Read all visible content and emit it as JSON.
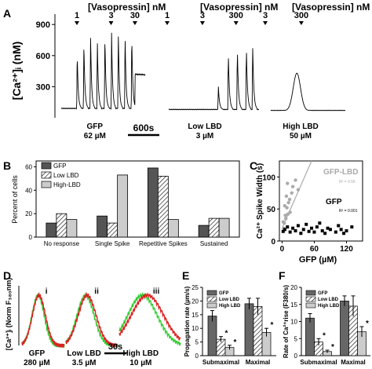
{
  "chart_data": [
    {
      "panel": "A",
      "type": "line",
      "ylabel": "[Ca²⁺]ᵢ (nM)",
      "yticks": [
        300,
        600,
        900
      ],
      "ylim": [
        0,
        1000
      ],
      "scalebar": "600s",
      "header_label": "[Vasopressin] nM",
      "traces": [
        {
          "label_line1": "GFP",
          "label_line2": "62 µM",
          "dose_marks": [
            {
              "label": "1",
              "t": 0.0
            },
            {
              "label": "3",
              "t": 0.5
            },
            {
              "label": "30",
              "t": 0.85
            }
          ],
          "peaks": [
            {
              "t": 0.19,
              "y": 640
            },
            {
              "t": 0.27,
              "y": 740
            },
            {
              "t": 0.35,
              "y": 770
            },
            {
              "t": 0.43,
              "y": 760
            },
            {
              "t": 0.52,
              "y": 800
            },
            {
              "t": 0.6,
              "y": 820
            },
            {
              "t": 0.68,
              "y": 830
            },
            {
              "t": 0.76,
              "y": 830
            },
            {
              "t": 0.84,
              "y": 820
            }
          ],
          "plateau_start": 0.88,
          "plateau_y": 400,
          "baseline": 90
        },
        {
          "label_line1": "Low LBD",
          "label_line2": "3 µM",
          "dose_marks": [
            {
              "label": "1",
              "t": 0.0
            },
            {
              "label": "3",
              "t": 0.42
            },
            {
              "label": "300",
              "t": 0.82
            }
          ],
          "peaks": [
            {
              "t": 0.55,
              "y": 300
            },
            {
              "t": 0.66,
              "y": 640
            },
            {
              "t": 0.76,
              "y": 680
            },
            {
              "t": 0.86,
              "y": 700
            },
            {
              "t": 0.93,
              "y": 710
            }
          ],
          "baseline": 80
        },
        {
          "label_line1": "High LBD",
          "label_line2": "50 µM",
          "dose_marks": [
            {
              "label": "3",
              "t": 0.0
            },
            {
              "label": "300",
              "t": 0.45
            }
          ],
          "broad_peak": {
            "t": 0.35,
            "y": 430,
            "width": 0.12
          },
          "baseline": 70
        }
      ]
    },
    {
      "panel": "B",
      "type": "bar",
      "ylabel": "Percent of cells",
      "yticks": [
        0,
        20,
        40,
        60
      ],
      "ylim": [
        0,
        65
      ],
      "categories": [
        "No response",
        "Single Spike",
        "Repetitive Spikes",
        "Sustained"
      ],
      "series": [
        {
          "name": "GFP",
          "color": "#555555",
          "pattern": "solid",
          "values": [
            12,
            18,
            59,
            10
          ]
        },
        {
          "name": "Low LBD",
          "color": "#ffffff",
          "pattern": "hatch",
          "values": [
            20,
            12,
            52,
            16
          ]
        },
        {
          "name": "High-LBD",
          "color": "#cccccc",
          "pattern": "solid",
          "values": [
            15,
            53,
            15,
            16
          ]
        }
      ]
    },
    {
      "panel": "C",
      "type": "scatter",
      "ylabel": "Ca²⁺ Spike Width (s)",
      "xlabel": "GFP (µM)",
      "xticks": [
        0,
        60,
        120
      ],
      "xlim": [
        -5,
        150
      ],
      "yticks": [
        0,
        50,
        100
      ],
      "ylim": [
        0,
        125
      ],
      "series": [
        {
          "name": "GFP-LBD",
          "color": "#aaaaaa",
          "r2": "R² = 0.56",
          "points": [
            [
              2,
              30
            ],
            [
              5,
              55
            ],
            [
              6,
              40
            ],
            [
              8,
              70
            ],
            [
              10,
              90
            ],
            [
              12,
              60
            ],
            [
              15,
              45
            ],
            [
              3,
              20
            ],
            [
              18,
              75
            ],
            [
              20,
              85
            ],
            [
              7,
              35
            ],
            [
              25,
              95
            ],
            [
              4,
              28
            ],
            [
              9,
              52
            ],
            [
              14,
              65
            ],
            [
              30,
              80
            ],
            [
              11,
              42
            ]
          ]
        },
        {
          "name": "GFP",
          "color": "#000000",
          "r2": "R² = 0.001",
          "points": [
            [
              2,
              15
            ],
            [
              5,
              18
            ],
            [
              10,
              22
            ],
            [
              15,
              14
            ],
            [
              20,
              20
            ],
            [
              25,
              16
            ],
            [
              30,
              24
            ],
            [
              35,
              12
            ],
            [
              40,
              18
            ],
            [
              45,
              26
            ],
            [
              50,
              15
            ],
            [
              55,
              20
            ],
            [
              60,
              14
            ],
            [
              65,
              22
            ],
            [
              70,
              28
            ],
            [
              75,
              16
            ],
            [
              80,
              12
            ],
            [
              85,
              20
            ],
            [
              90,
              18
            ],
            [
              100,
              14
            ],
            [
              105,
              24
            ],
            [
              110,
              18
            ],
            [
              115,
              12
            ],
            [
              120,
              16
            ],
            [
              130,
              22
            ]
          ]
        }
      ],
      "fit_line": {
        "series": "GFP-LBD",
        "x": [
          0,
          55
        ],
        "y": [
          20,
          125
        ]
      }
    },
    {
      "panel": "D",
      "type": "line",
      "ylabel": "[Ca²⁺]ᵢ (Norm F₃₈₀nm)",
      "scalebar": "30s",
      "subpanels": [
        {
          "roman": "i",
          "label_line1": "GFP",
          "label_line2": "280 µM",
          "green_width": 0.3,
          "red_width": 0.32,
          "red_lag": 0.02
        },
        {
          "roman": "ii",
          "label_line1": "Low LBD",
          "label_line2": "3.5 µM",
          "green_width": 0.34,
          "red_width": 0.36,
          "red_lag": 0.03
        },
        {
          "roman": "iii",
          "label_line1": "High LBD",
          "label_line2": "10 µM",
          "green_width": 0.5,
          "red_width": 0.55,
          "red_lag": 0.08
        }
      ],
      "colors": {
        "green": "#33cc33",
        "red": "#dd2222"
      }
    },
    {
      "panel": "E",
      "type": "bar",
      "ylabel": "Propagation rate (µm/s)",
      "yticks": [
        0,
        5,
        10,
        15,
        20,
        25
      ],
      "ylim": [
        0,
        25
      ],
      "categories": [
        "Submaximal",
        "Maximal"
      ],
      "series": [
        {
          "name": "GFP",
          "color": "#666666",
          "values": [
            14.5,
            19
          ],
          "err": [
            2.0,
            2.0
          ]
        },
        {
          "name": "Low LBD",
          "color": "#ffffff",
          "values": [
            6,
            18
          ],
          "err": [
            1.0,
            3.0
          ]
        },
        {
          "name": "High LBD",
          "color": "#cccccc",
          "values": [
            3,
            8.5
          ],
          "err": [
            0.8,
            1.5
          ]
        }
      ],
      "stars": [
        [
          1,
          0
        ],
        [
          2,
          0
        ],
        [
          2,
          1
        ]
      ]
    },
    {
      "panel": "F",
      "type": "bar",
      "ylabel": "Rate of Ca²⁺rise (F380/s)",
      "yticks": [
        0,
        5,
        10,
        15,
        20
      ],
      "ylim": [
        0,
        20
      ],
      "categories": [
        "Submaximal",
        "Maximal"
      ],
      "series": [
        {
          "name": "GFP",
          "color": "#666666",
          "values": [
            11,
            16
          ],
          "err": [
            1.3,
            1.5
          ]
        },
        {
          "name": "Low LBD",
          "color": "#ffffff",
          "values": [
            4,
            14.5
          ],
          "err": [
            1.0,
            3.0
          ]
        },
        {
          "name": "High LBD",
          "color": "#cccccc",
          "values": [
            1.2,
            7
          ],
          "err": [
            0.4,
            1.5
          ]
        }
      ],
      "stars": [
        [
          1,
          0
        ],
        [
          2,
          0
        ],
        [
          2,
          1
        ]
      ]
    }
  ],
  "panel_letters": {
    "A": "A",
    "B": "B",
    "C": "C",
    "D": "D",
    "E": "E",
    "F": "F"
  }
}
